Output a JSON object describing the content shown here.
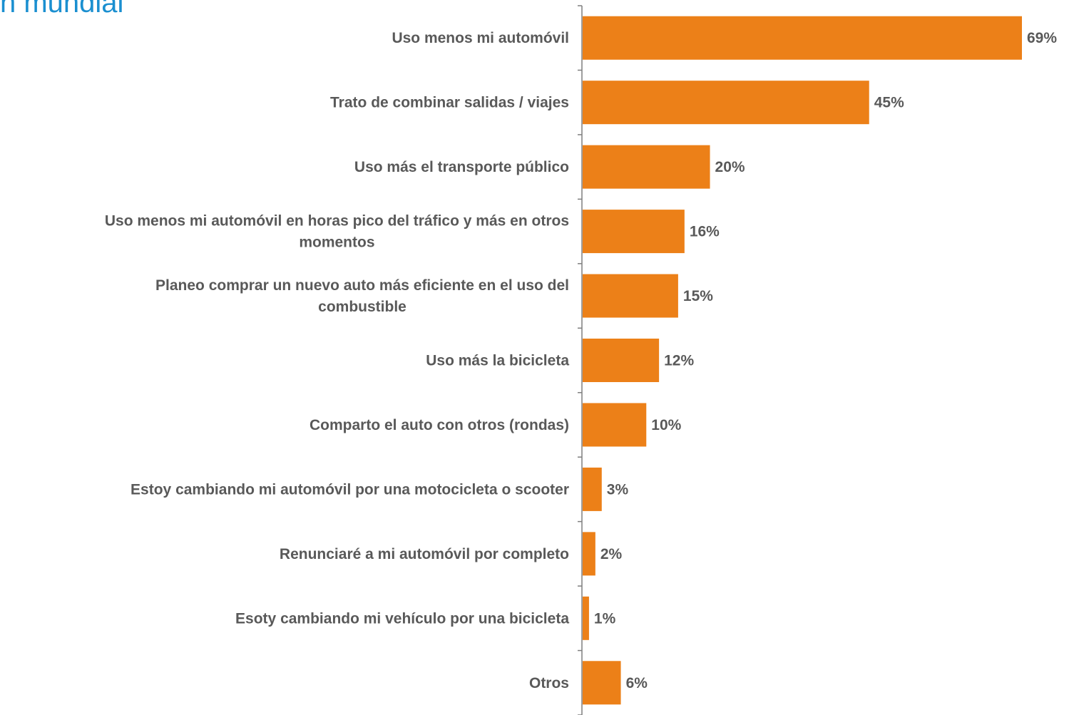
{
  "title_fragment": "n mundial",
  "colors": {
    "title": "#1a8fd0",
    "bar": "#ec8018",
    "label_text": "#595959",
    "axis": "#7f7f7f"
  },
  "chart_data": {
    "type": "bar",
    "orientation": "horizontal",
    "title": "n mundial",
    "categories": [
      [
        "Uso menos mi automóvil"
      ],
      [
        "Trato de combinar salidas / viajes"
      ],
      [
        "Uso más el transporte público"
      ],
      [
        "Uso menos mi automóvil en horas pico del tráfico y más en otros",
        "momentos"
      ],
      [
        "Planeo comprar un nuevo auto más eficiente en el uso del",
        "combustible"
      ],
      [
        "Uso más la bicicleta"
      ],
      [
        "Comparto el auto con otros (rondas)"
      ],
      [
        "Estoy cambiando mi automóvil por una motocicleta o scooter"
      ],
      [
        "Renunciaré a mi automóvil por completo"
      ],
      [
        "Esoty cambiando mi vehículo por una bicicleta"
      ],
      [
        "Otros"
      ]
    ],
    "values": [
      69,
      45,
      20,
      16,
      15,
      12,
      10,
      3,
      2,
      1,
      6
    ],
    "value_labels": [
      "69%",
      "45%",
      "20%",
      "16%",
      "15%",
      "12%",
      "10%",
      "3%",
      "2%",
      "1%",
      "6%"
    ],
    "unit": "%",
    "xlim": [
      0,
      70
    ],
    "grid": false,
    "legend": "none"
  }
}
